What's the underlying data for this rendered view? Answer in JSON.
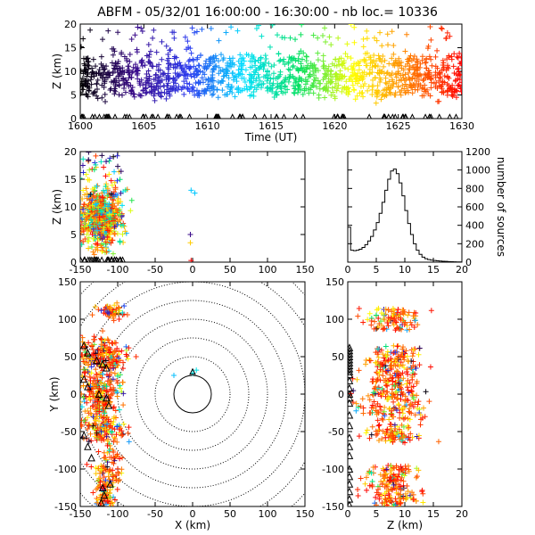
{
  "title": "ABFM - 05/32/01 16:00:00 - 16:30:00 - nb loc.=  10336",
  "chart_data": [
    {
      "id": "time_height",
      "type": "scatter",
      "xlabel": "Time (UT)",
      "ylabel": "Z (km)",
      "xlim": [
        1600,
        1630
      ],
      "ylim": [
        0,
        20
      ],
      "xticks": [
        "1600",
        "1605",
        "1610",
        "1615",
        "1620",
        "1625",
        "1630"
      ],
      "yticks": [
        "0",
        "5",
        "10",
        "15",
        "20"
      ],
      "marker": "+",
      "color_by": "time",
      "colormap": [
        "#000000",
        "#3a0a8a",
        "#2a3af0",
        "#00e0ff",
        "#00e060",
        "#ffff00",
        "#ff8000",
        "#ff0000"
      ],
      "z_band": [
        5,
        13
      ],
      "ground_marker": "triangle"
    },
    {
      "id": "x_height",
      "type": "scatter",
      "ylabel": "Z (km)",
      "xlim": [
        -150,
        150
      ],
      "ylim": [
        0,
        20
      ],
      "xticks": [
        "-150",
        "-100",
        "-50",
        "0",
        "50",
        "100",
        "150"
      ],
      "yticks": [
        "0",
        "5",
        "10",
        "15",
        "20"
      ],
      "marker": "+",
      "color_by": "time",
      "x_cluster": [
        -150,
        -85
      ],
      "outliers": [
        {
          "x": -2,
          "z": 13,
          "color": "#00c8ff"
        },
        {
          "x": 3,
          "z": 12.5,
          "color": "#00c8ff"
        },
        {
          "x": -3,
          "z": 5,
          "color": "#3a0a8a"
        },
        {
          "x": -3,
          "z": 3.5,
          "color": "#ffcc00"
        },
        {
          "x": -2,
          "z": 0.3,
          "color": "#ff0000"
        }
      ]
    },
    {
      "id": "height_histogram",
      "type": "line",
      "xlabel": "",
      "ylabel": "number of sources",
      "xlim": [
        0,
        20
      ],
      "ylim": [
        0,
        1200
      ],
      "xticks": [
        "0",
        "5",
        "10",
        "15",
        "20"
      ],
      "yticks": [
        "0",
        "200",
        "400",
        "600",
        "800",
        "1000",
        "1200"
      ],
      "step": true,
      "x": [
        0,
        0.5,
        1,
        1.5,
        2,
        2.5,
        3,
        3.5,
        4,
        4.5,
        5,
        5.5,
        6,
        6.5,
        7,
        7.5,
        8,
        8.5,
        9,
        9.5,
        10,
        10.5,
        11,
        11.5,
        12,
        12.5,
        13,
        13.5,
        14,
        14.5,
        15,
        15.5,
        16,
        16.5,
        17,
        17.5,
        18,
        18.5,
        19,
        19.5
      ],
      "values": [
        380,
        130,
        125,
        130,
        140,
        160,
        190,
        230,
        280,
        350,
        430,
        530,
        650,
        780,
        900,
        990,
        1010,
        960,
        860,
        720,
        560,
        420,
        300,
        200,
        130,
        85,
        55,
        38,
        28,
        22,
        18,
        15,
        12,
        10,
        8,
        6,
        5,
        4,
        3,
        2
      ]
    },
    {
      "id": "plan_view",
      "type": "scatter",
      "xlabel": "X (km)",
      "ylabel": "Y (km)",
      "xlim": [
        -150,
        150
      ],
      "ylim": [
        -150,
        150
      ],
      "xticks": [
        "-150",
        "-100",
        "-50",
        "0",
        "50",
        "100",
        "150"
      ],
      "yticks": [
        "-150",
        "-100",
        "-50",
        "0",
        "50",
        "100",
        "150"
      ],
      "range_rings_km": [
        25,
        50,
        75,
        100,
        125,
        150,
        175,
        200
      ],
      "center_marker": {
        "x": 0,
        "y": 30
      }
    },
    {
      "id": "height_y",
      "type": "scatter",
      "xlabel": "Z (km)",
      "xlim": [
        0,
        20
      ],
      "ylim": [
        -150,
        150
      ],
      "xticks": [
        "0",
        "5",
        "10",
        "15",
        "20"
      ],
      "yticks": [
        "-150",
        "-100",
        "-50",
        "0",
        "50",
        "100",
        "150"
      ],
      "y_clusters": [
        [
          85,
          115
        ],
        [
          25,
          65
        ],
        [
          -35,
          25
        ],
        [
          -65,
          -40
        ],
        [
          -140,
          -95
        ],
        [
          -150,
          -140
        ]
      ]
    }
  ]
}
